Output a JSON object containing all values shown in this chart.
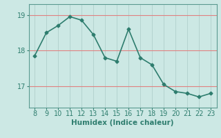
{
  "x": [
    8,
    9,
    10,
    11,
    12,
    13,
    14,
    15,
    16,
    17,
    18,
    19,
    20,
    21,
    22,
    23
  ],
  "y": [
    17.85,
    18.5,
    18.7,
    18.95,
    18.85,
    18.45,
    17.8,
    17.7,
    18.6,
    17.8,
    17.6,
    17.05,
    16.85,
    16.8,
    16.7,
    16.8
  ],
  "xlabel": "Humidex (Indice chaleur)",
  "ylim": [
    16.4,
    19.3
  ],
  "xlim": [
    7.5,
    23.5
  ],
  "yticks": [
    17,
    18,
    19
  ],
  "xticks": [
    8,
    9,
    10,
    11,
    12,
    13,
    14,
    15,
    16,
    17,
    18,
    19,
    20,
    21,
    22,
    23
  ],
  "line_color": "#2e7d6e",
  "marker_color": "#2e7d6e",
  "bg_color": "#cce8e4",
  "grid_color_h": "#e08080",
  "grid_color_v": "#b0d0cc",
  "plot_bg": "#cce8e4"
}
